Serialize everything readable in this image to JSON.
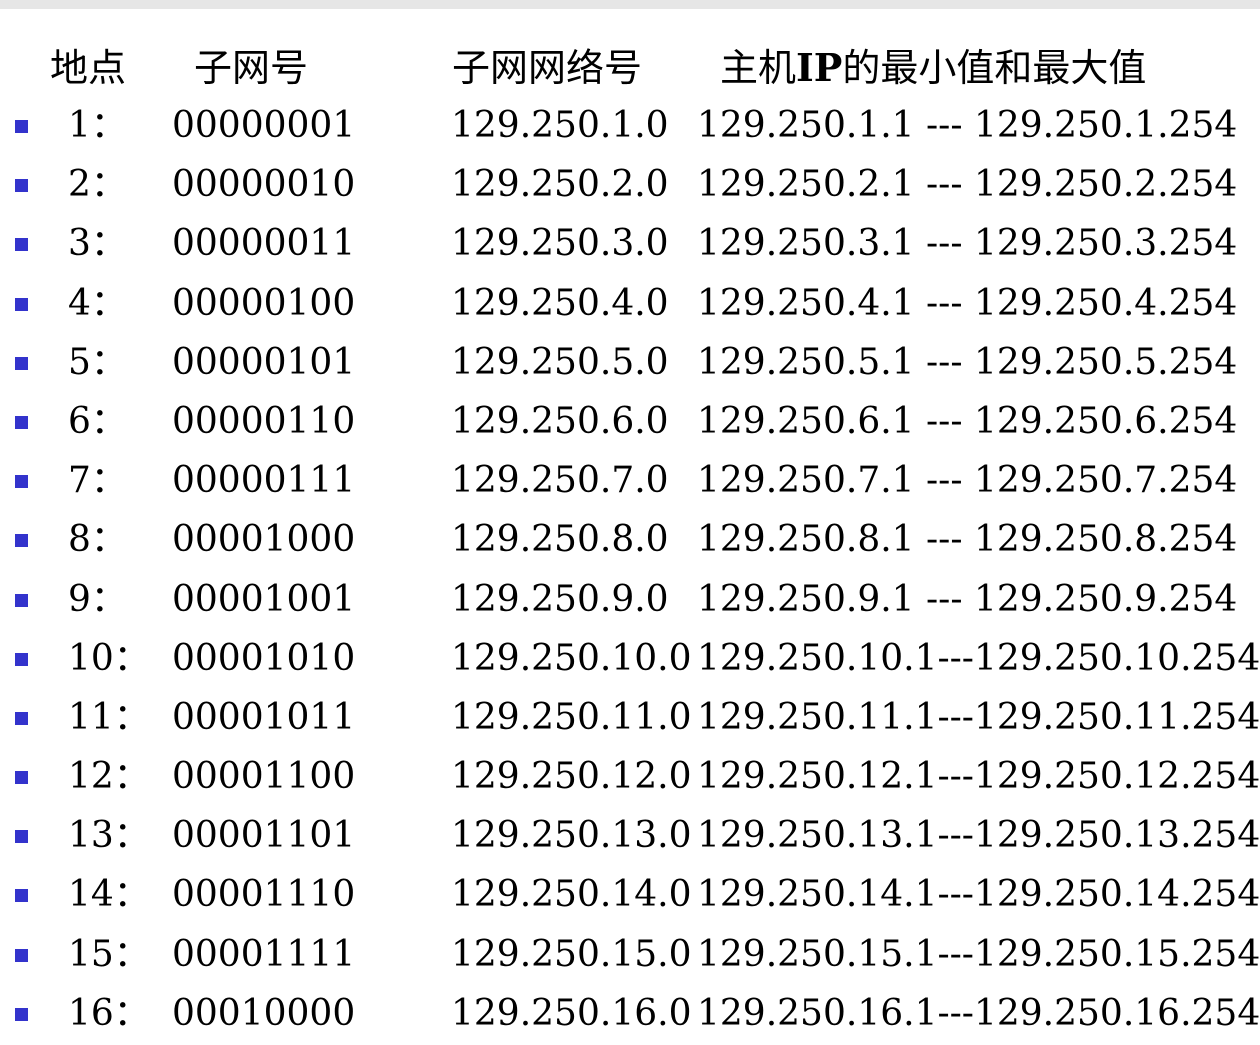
{
  "colors": {
    "bullet": "#3333cc",
    "text": "#000000",
    "background": "#ffffff"
  },
  "header": {
    "location": "地点",
    "subnet_no": "子网号",
    "subnet_network": "子网网络号",
    "ip_range_prefix": "主机",
    "ip_range_ip": "IP",
    "ip_range_suffix": "的最小值和最大值"
  },
  "rows": [
    {
      "location": "1：",
      "subnet_bits": "00000001",
      "network": "129.250.1.0",
      "ip_range": "129.250.1.1 --- 129.250.1.254"
    },
    {
      "location": "2：",
      "subnet_bits": "00000010",
      "network": "129.250.2.0",
      "ip_range": "129.250.2.1 --- 129.250.2.254"
    },
    {
      "location": "3：",
      "subnet_bits": "00000011",
      "network": "129.250.3.0",
      "ip_range": "129.250.3.1 --- 129.250.3.254"
    },
    {
      "location": "4：",
      "subnet_bits": "00000100",
      "network": "129.250.4.0",
      "ip_range": "129.250.4.1 --- 129.250.4.254"
    },
    {
      "location": "5：",
      "subnet_bits": "00000101",
      "network": "129.250.5.0",
      "ip_range": "129.250.5.1 --- 129.250.5.254"
    },
    {
      "location": "6：",
      "subnet_bits": "00000110",
      "network": "129.250.6.0",
      "ip_range": "129.250.6.1 --- 129.250.6.254"
    },
    {
      "location": "7：",
      "subnet_bits": "00000111",
      "network": "129.250.7.0",
      "ip_range": "129.250.7.1 --- 129.250.7.254"
    },
    {
      "location": "8：",
      "subnet_bits": "00001000",
      "network": "129.250.8.0",
      "ip_range": "129.250.8.1 --- 129.250.8.254"
    },
    {
      "location": "9：",
      "subnet_bits": "00001001",
      "network": "129.250.9.0",
      "ip_range": "129.250.9.1 --- 129.250.9.254"
    },
    {
      "location": "10：",
      "subnet_bits": "00001010",
      "network": "129.250.10.0",
      "ip_range": "129.250.10.1---129.250.10.254"
    },
    {
      "location": "11：",
      "subnet_bits": "00001011",
      "network": "129.250.11.0",
      "ip_range": "129.250.11.1---129.250.11.254"
    },
    {
      "location": "12：",
      "subnet_bits": "00001100",
      "network": "129.250.12.0",
      "ip_range": "129.250.12.1---129.250.12.254"
    },
    {
      "location": "13：",
      "subnet_bits": "00001101",
      "network": "129.250.13.0",
      "ip_range": "129.250.13.1---129.250.13.254"
    },
    {
      "location": "14：",
      "subnet_bits": "00001110",
      "network": "129.250.14.0",
      "ip_range": "129.250.14.1---129.250.14.254"
    },
    {
      "location": "15：",
      "subnet_bits": "00001111",
      "network": "129.250.15.0",
      "ip_range": "129.250.15.1---129.250.15.254"
    },
    {
      "location": "16：",
      "subnet_bits": "00010000",
      "network": "129.250.16.0",
      "ip_range": "129.250.16.1---129.250.16.254"
    }
  ]
}
